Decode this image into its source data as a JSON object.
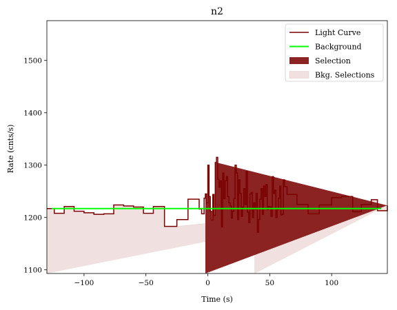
{
  "chart_data": {
    "type": "line",
    "title": "n2",
    "xlabel": "Time (s)",
    "ylabel": "Rate (cnts/s)",
    "xlim": [
      -130,
      145
    ],
    "ylim": [
      1093,
      1576
    ],
    "xticks": [
      -100,
      -50,
      0,
      50,
      100
    ],
    "yticks": [
      1100,
      1200,
      1300,
      1400,
      1500
    ],
    "grid": false,
    "legend_position": "top-right",
    "legend": [
      {
        "label": "Light Curve",
        "kind": "line",
        "color": "#7a0000"
      },
      {
        "label": "Background",
        "kind": "line",
        "color": "#00ff00"
      },
      {
        "label": "Selection",
        "kind": "patch",
        "color": "#8b2323"
      },
      {
        "label": "Bkg. Selections",
        "kind": "patch",
        "color": "#f0e0e0"
      }
    ],
    "background_level": 1217,
    "bkg_selections": [
      [
        -130,
        -25
      ],
      [
        38,
        145
      ]
    ],
    "selection": [
      -2,
      7
    ],
    "series": [
      {
        "name": "Light Curve",
        "color": "#7a0000",
        "step_edges": [
          -130,
          -124,
          -116,
          -108,
          -100,
          -92,
          -84,
          -76,
          -68,
          -60,
          -52,
          -44,
          -35,
          -25,
          -16,
          -7,
          -5,
          -3,
          -2,
          -1,
          0,
          1,
          2,
          3,
          4,
          5,
          6,
          7,
          8,
          9,
          10,
          11,
          12,
          13,
          14,
          15,
          16,
          17,
          18,
          19,
          20,
          21,
          22,
          23,
          24,
          25,
          26,
          27,
          28,
          29,
          30,
          31,
          32,
          33,
          34,
          35,
          36,
          37,
          38,
          39,
          40,
          41,
          42,
          43,
          44,
          45,
          46,
          47,
          48,
          49,
          50,
          51,
          52,
          53,
          54,
          55,
          56,
          57,
          58,
          59,
          60,
          61,
          62,
          64,
          72,
          81,
          90,
          100,
          108,
          117,
          124,
          132,
          137,
          145
        ],
        "step_values": [
          1217,
          1208,
          1221,
          1212,
          1209,
          1206,
          1207,
          1224,
          1222,
          1220,
          1208,
          1221,
          1183,
          1196,
          1235,
          1216,
          1207,
          1237,
          1245,
          1228,
          1300,
          1240,
          1212,
          1195,
          1244,
          1204,
          1305,
          1315,
          1273,
          1258,
          1270,
          1182,
          1285,
          1236,
          1270,
          1278,
          1240,
          1228,
          1222,
          1199,
          1212,
          1236,
          1300,
          1285,
          1196,
          1272,
          1246,
          1202,
          1220,
          1255,
          1225,
          1288,
          1210,
          1190,
          1245,
          1248,
          1200,
          1228,
          1216,
          1246,
          1172,
          1196,
          1235,
          1255,
          1206,
          1260,
          1240,
          1263,
          1215,
          1221,
          1220,
          1202,
          1278,
          1246,
          1252,
          1200,
          1215,
          1237,
          1260,
          1205,
          1206,
          1272,
          1259,
          1244,
          1225,
          1207,
          1224,
          1238,
          1240,
          1211,
          1225,
          1234,
          1213,
          1223
        ]
      },
      {
        "name": "Background",
        "color": "#00ff00",
        "x": [
          -126,
          140
        ],
        "values": [
          1217,
          1217
        ]
      }
    ]
  }
}
